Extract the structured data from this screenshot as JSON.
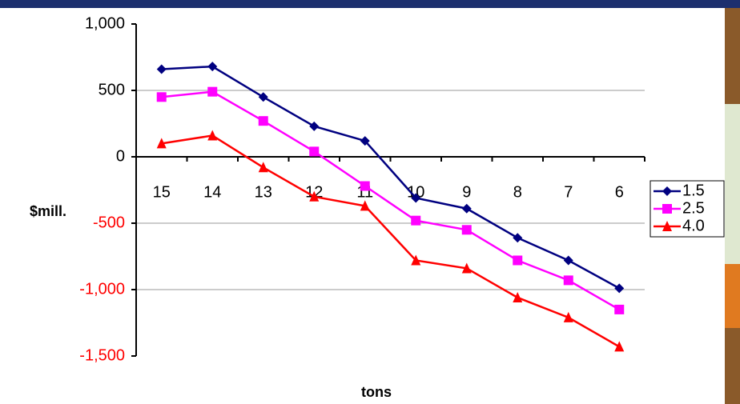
{
  "chart_data": {
    "type": "line",
    "x_label": "tons",
    "y_label": "$mill.",
    "categories": [
      "15",
      "14",
      "13",
      "12",
      "11",
      "10",
      "9",
      "8",
      "7",
      "6"
    ],
    "series": [
      {
        "name": "1.5",
        "color": "#000080",
        "marker": "diamond",
        "values": [
          660,
          680,
          450,
          230,
          120,
          -310,
          -390,
          -610,
          -780,
          -990
        ]
      },
      {
        "name": "2.5",
        "color": "#ff00ff",
        "marker": "square",
        "values": [
          450,
          490,
          270,
          40,
          -220,
          -480,
          -550,
          -780,
          -930,
          -1150
        ]
      },
      {
        "name": "4.0",
        "color": "#ff0000",
        "marker": "triangle",
        "values": [
          100,
          160,
          -80,
          -300,
          -370,
          -780,
          -840,
          -1060,
          -1210,
          -1430
        ]
      }
    ],
    "ylim": [
      -1500,
      1000
    ],
    "yticks": [
      {
        "value": -1500,
        "label": "-1,500"
      },
      {
        "value": -1000,
        "label": "-1,000"
      },
      -500,
      0,
      500,
      {
        "value": 1000,
        "label": "1,000"
      }
    ],
    "negative_tick_color": "#ff0000",
    "grid": true,
    "legend": "right"
  }
}
